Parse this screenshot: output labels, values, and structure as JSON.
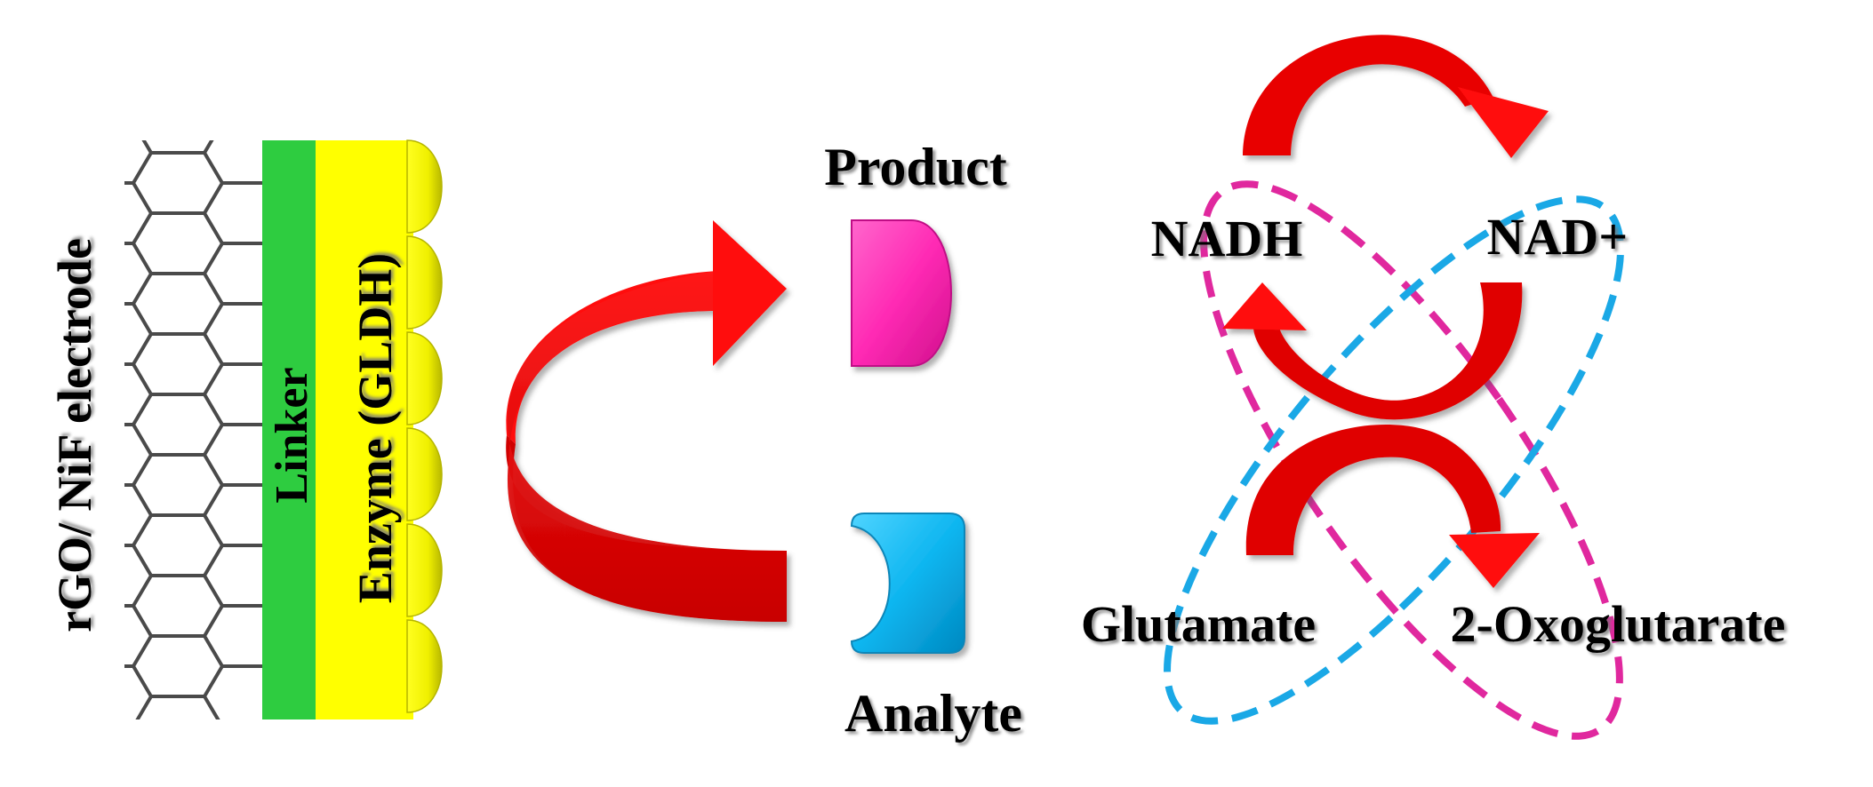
{
  "electrode": {
    "label": "rGO/ NiF electrode",
    "linker_label": "Linker",
    "enzyme_label": "Enzyme (GLDH)"
  },
  "substrates": {
    "product_label": "Product",
    "analyte_label": "Analyte"
  },
  "cycle": {
    "nadh_label": "NADH",
    "nad_label": "NAD+",
    "glutamate_label": "Glutamate",
    "oxoglutarate_label": "2-Oxoglutarate"
  },
  "colors": {
    "arrow": "#e00000",
    "linker": "#2ecc40",
    "enzyme": "#ffff00",
    "enzyme_bump": "#dede00",
    "product": "#ff33bb",
    "analyte": "#00b8f0",
    "ring_magenta": "#e0289e",
    "ring_cyan": "#1aa8e6",
    "lattice": "#4a4a4a"
  }
}
